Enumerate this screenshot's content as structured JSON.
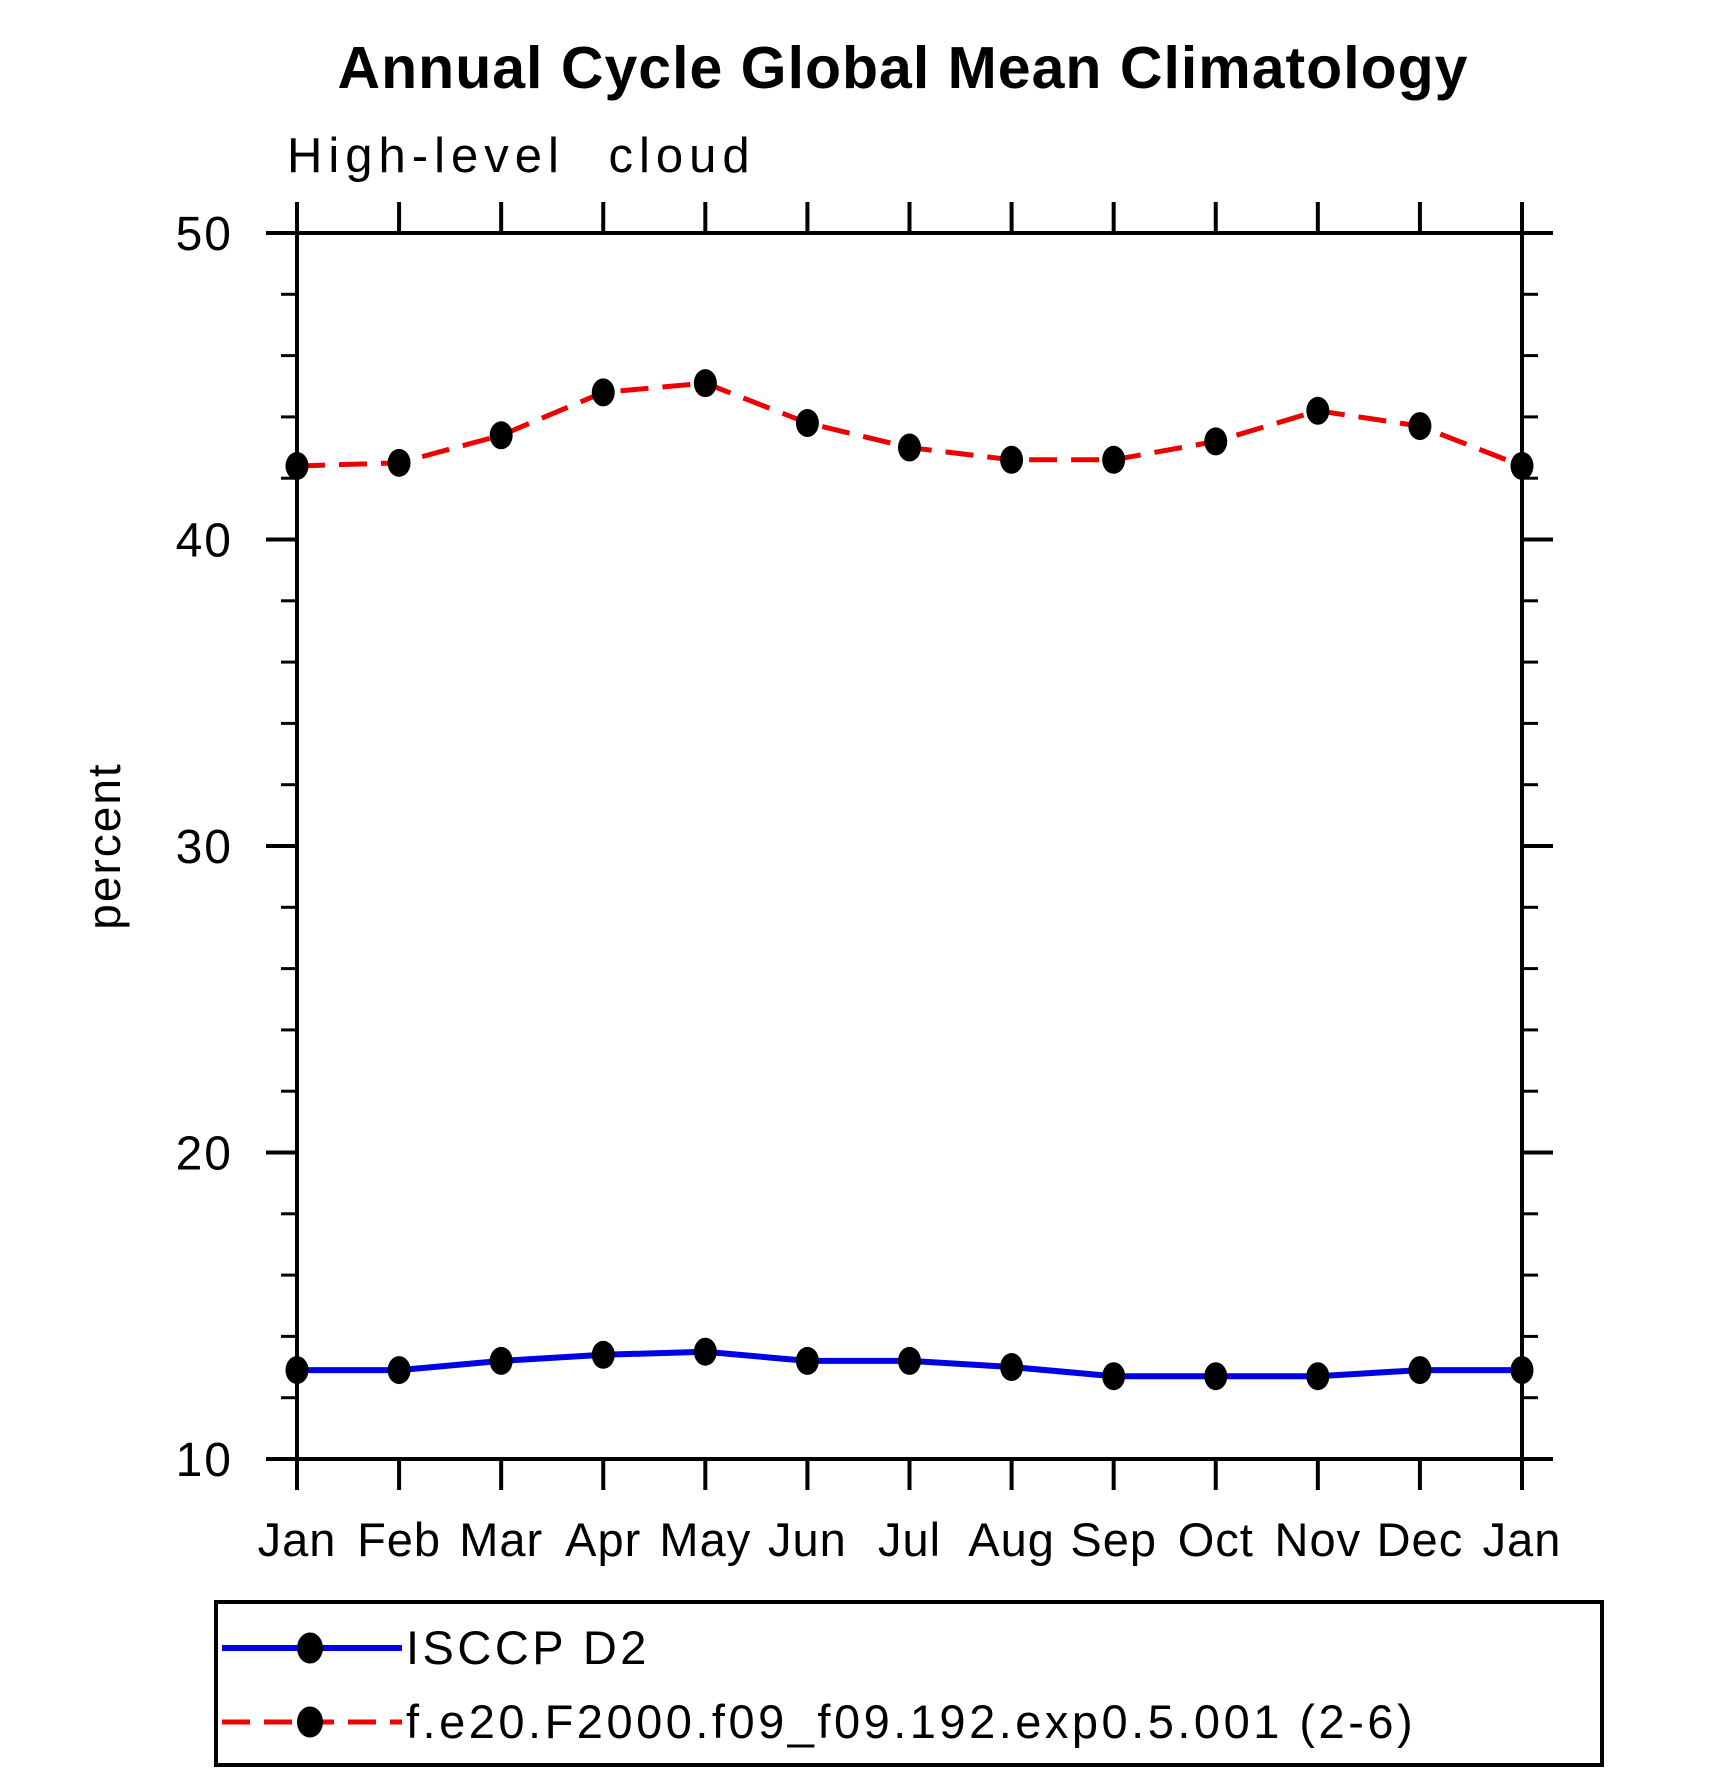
{
  "chart_data": {
    "type": "line",
    "title": "Annual Cycle Global Mean Climatology",
    "subtitle": "High-level cloud",
    "ylabel": "percent",
    "categories": [
      "Jan",
      "Feb",
      "Mar",
      "Apr",
      "May",
      "Jun",
      "Jul",
      "Aug",
      "Sep",
      "Oct",
      "Nov",
      "Dec",
      "Jan"
    ],
    "y_axis": {
      "min": 10,
      "max": 50,
      "major_tick_step": 10,
      "minor_tick_step": 2,
      "tick_labels": [
        "10",
        "20",
        "30",
        "40",
        "50"
      ]
    },
    "grid": "off",
    "legend_position": "bottom-left-boxed",
    "series": [
      {
        "name": "ISCCP D2",
        "color": "#0000e6",
        "line_style": "solid",
        "marker": "filled-circle",
        "marker_color": "#000000",
        "values": [
          12.9,
          12.9,
          13.2,
          13.4,
          13.5,
          13.2,
          13.2,
          13.0,
          12.7,
          12.7,
          12.7,
          12.9,
          12.9
        ]
      },
      {
        "name": "f.e20.F2000.f09_f09.192.exp0.5.001 (2-6)",
        "color": "#ee0000",
        "line_style": "dashed",
        "marker": "filled-circle",
        "marker_color": "#000000",
        "values": [
          42.4,
          42.5,
          43.4,
          44.8,
          45.1,
          43.8,
          43.0,
          42.6,
          42.6,
          43.2,
          44.2,
          43.7,
          42.4
        ]
      }
    ]
  }
}
